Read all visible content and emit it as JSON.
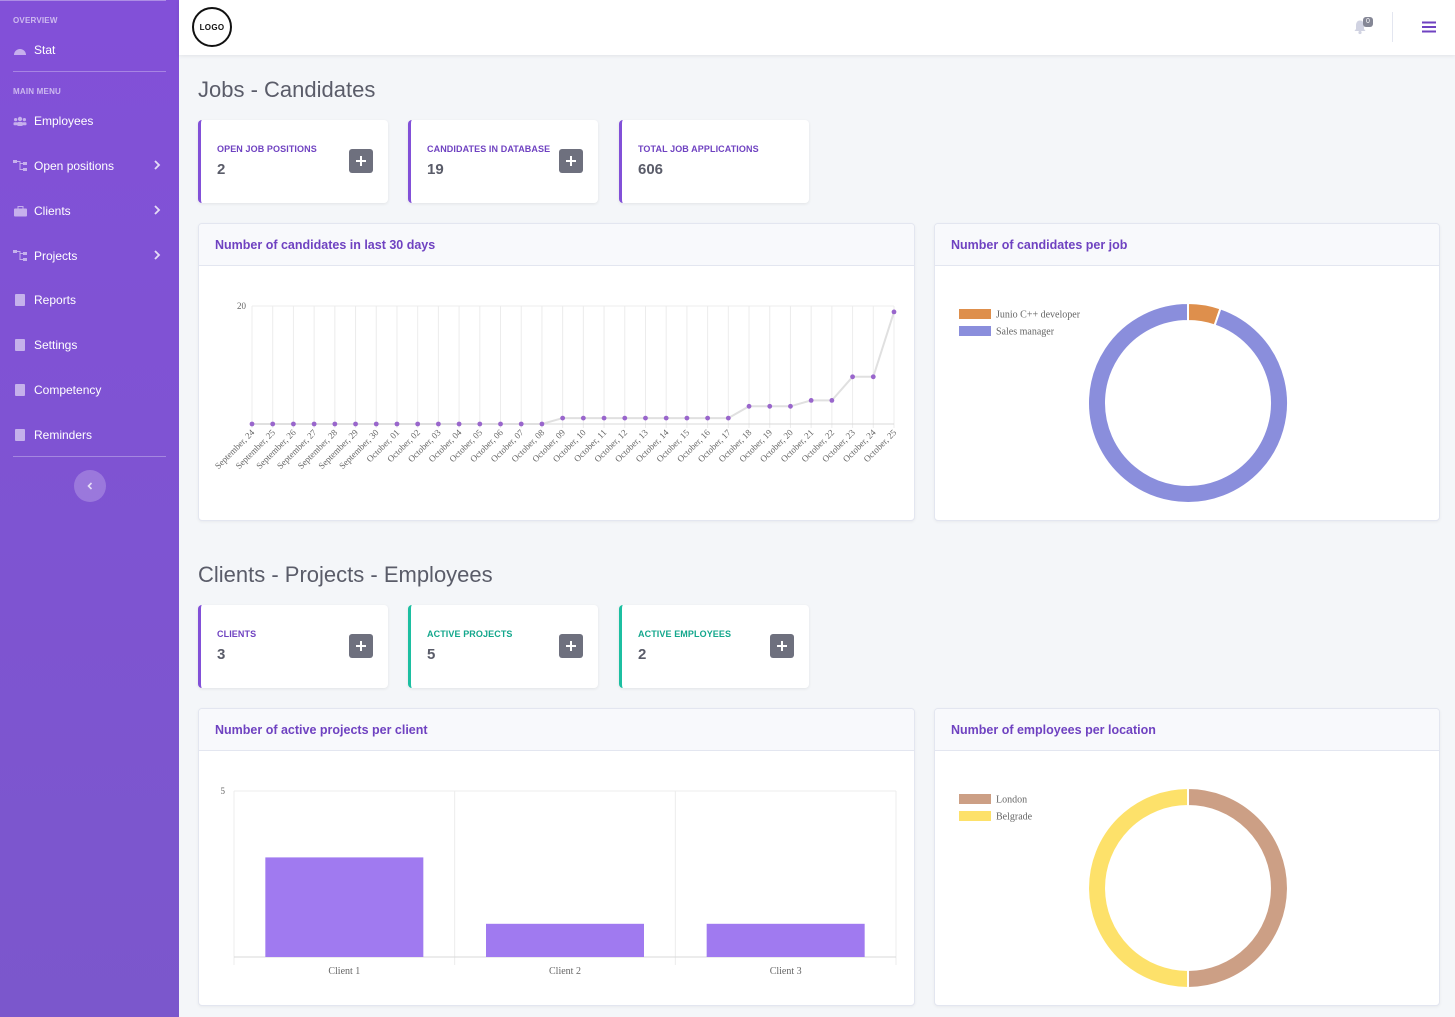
{
  "sidebar": {
    "overview_heading": "OVERVIEW",
    "main_menu_heading": "MAIN MENU",
    "items": [
      {
        "label": "Stat",
        "icon": "tachometer-icon",
        "chevron": false
      },
      {
        "label": "Employees",
        "icon": "users-icon",
        "chevron": false
      },
      {
        "label": "Open positions",
        "icon": "sitemap-icon",
        "chevron": true
      },
      {
        "label": "Clients",
        "icon": "briefcase-icon",
        "chevron": true
      },
      {
        "label": "Projects",
        "icon": "sitemap-icon",
        "chevron": true
      },
      {
        "label": "Reports",
        "icon": "book-icon",
        "chevron": false
      },
      {
        "label": "Settings",
        "icon": "book-icon",
        "chevron": false
      },
      {
        "label": "Competency",
        "icon": "book-icon",
        "chevron": false
      },
      {
        "label": "Reminders",
        "icon": "book-icon",
        "chevron": false
      }
    ]
  },
  "topbar": {
    "logo_text": "LOGO",
    "notification_count": "0"
  },
  "sections": {
    "jobs_title": "Jobs - Candidates",
    "clients_title": "Clients - Projects - Employees"
  },
  "stats": {
    "open_jobs": {
      "label": "OPEN JOB POSITIONS",
      "value": "2"
    },
    "candidates": {
      "label": "CANDIDATES IN DATABASE",
      "value": "19"
    },
    "applications": {
      "label": "TOTAL JOB APPLICATIONS",
      "value": "606"
    },
    "clients": {
      "label": "CLIENTS",
      "value": "3"
    },
    "active_projects": {
      "label": "ACTIVE PROJECTS",
      "value": "5"
    },
    "active_employees": {
      "label": "ACTIVE EMPLOYEES",
      "value": "2"
    }
  },
  "colors": {
    "accent": "#8250d8",
    "title_purple": "#6f42c1",
    "teal": "#1cbfa1",
    "line": "#e0e0e0",
    "point": "#9966cc",
    "bar": "#a07af0"
  },
  "chart_data": [
    {
      "id": "candidates_30_days",
      "type": "line",
      "title": "Number of candidates in last 30 days",
      "x": [
        "September, 24",
        "September, 25",
        "September, 26",
        "September, 27",
        "September, 28",
        "September, 29",
        "September, 30",
        "October, 01",
        "October, 02",
        "October, 03",
        "October, 04",
        "October, 05",
        "October, 06",
        "October, 07",
        "October, 08",
        "October, 09",
        "October, 10",
        "October, 11",
        "October, 12",
        "October, 13",
        "October, 14",
        "October, 15",
        "October, 16",
        "October, 17",
        "October, 18",
        "October, 19",
        "October, 20",
        "October, 21",
        "October, 22",
        "October, 23",
        "October, 24",
        "October, 25"
      ],
      "values": [
        0,
        0,
        0,
        0,
        0,
        0,
        0,
        0,
        0,
        0,
        0,
        0,
        0,
        0,
        0,
        1,
        1,
        1,
        1,
        1,
        1,
        1,
        1,
        1,
        3,
        3,
        3,
        4,
        4,
        8,
        8,
        19
      ],
      "ylim": [
        0,
        20
      ],
      "yticks": [
        "20"
      ],
      "grid": true
    },
    {
      "id": "candidates_per_job",
      "type": "pie",
      "title": "Number of candidates per job",
      "labels": [
        "Junio C++ developer",
        "Sales manager"
      ],
      "values": [
        1,
        18
      ],
      "colors": [
        "#de8f4c",
        "#8a8edc"
      ],
      "legend": "top-left"
    },
    {
      "id": "projects_per_client",
      "type": "bar",
      "title": "Number of active projects per client",
      "categories": [
        "Client 1",
        "Client 2",
        "Client 3"
      ],
      "values": [
        3,
        1,
        1
      ],
      "ylim": [
        0,
        5
      ],
      "yticks": [
        "5"
      ],
      "grid": true
    },
    {
      "id": "employees_per_location",
      "type": "pie",
      "title": "Number of employees per location",
      "labels": [
        "London",
        "Belgrade"
      ],
      "values": [
        1,
        1
      ],
      "colors": [
        "#cc9f85",
        "#fde16a"
      ],
      "legend": "top-left"
    }
  ]
}
